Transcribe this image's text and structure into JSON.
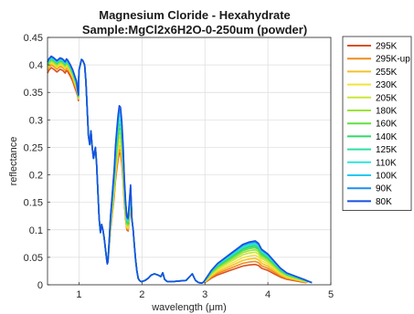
{
  "chart_data": {
    "type": "line",
    "title": "Magnesium Cloride - Hexahydrate",
    "subtitle": "Sample:MgCl2x6H2O-0-250um (powder)",
    "xlabel": "wavelength (μm)",
    "ylabel": "reflectance",
    "xlim": [
      0.5,
      5
    ],
    "ylim": [
      0,
      0.45
    ],
    "xticks": [
      "1",
      "2",
      "3",
      "4",
      "5"
    ],
    "yticks": [
      "0",
      "0.05",
      "0.1",
      "0.15",
      "0.2",
      "0.25",
      "0.3",
      "0.35",
      "0.4",
      "0.45"
    ],
    "grid": true,
    "legend_position": "outside-right",
    "base_curve": {
      "x": [
        0.5,
        0.52,
        0.56,
        0.6,
        0.65,
        0.7,
        0.74,
        0.78,
        0.8,
        0.82,
        0.86,
        0.9,
        0.93,
        0.96,
        0.98,
        0.99,
        1.0,
        1.02,
        1.04,
        1.06,
        1.09,
        1.11,
        1.13,
        1.15,
        1.17,
        1.19,
        1.21,
        1.23,
        1.26,
        1.28,
        1.3,
        1.32,
        1.34,
        1.36,
        1.38,
        1.4,
        1.42,
        1.44,
        1.45,
        1.46,
        1.48,
        1.5,
        1.52,
        1.54,
        1.56,
        1.58,
        1.6,
        1.62,
        1.64,
        1.66,
        1.68,
        1.7,
        1.72,
        1.74,
        1.76,
        1.78,
        1.8,
        1.82,
        1.84,
        1.86,
        1.88,
        1.9,
        1.92,
        1.94,
        1.96,
        1.98,
        2.0,
        2.05,
        2.1,
        2.15,
        2.2,
        2.25,
        2.3,
        2.33,
        2.36,
        2.4,
        2.5,
        2.6,
        2.7,
        2.8,
        2.85,
        2.9,
        2.95,
        2.98,
        3.0,
        3.05,
        3.1,
        3.2,
        3.3,
        3.4,
        3.5,
        3.6,
        3.7,
        3.8,
        3.85,
        3.9,
        3.95,
        4.0,
        4.1,
        4.2,
        4.3,
        4.4,
        4.5,
        4.6,
        4.65,
        4.7
      ],
      "y": [
        0.385,
        0.39,
        0.395,
        0.392,
        0.387,
        0.392,
        0.39,
        0.385,
        0.39,
        0.388,
        0.38,
        0.37,
        0.36,
        0.35,
        0.342,
        0.335,
        0.39,
        0.4,
        0.41,
        0.408,
        0.4,
        0.37,
        0.32,
        0.27,
        0.255,
        0.28,
        0.25,
        0.23,
        0.25,
        0.22,
        0.17,
        0.12,
        0.095,
        0.11,
        0.1,
        0.085,
        0.065,
        0.045,
        0.04,
        0.043,
        0.07,
        0.1,
        0.12,
        0.14,
        0.16,
        0.19,
        0.21,
        0.228,
        0.24,
        0.238,
        0.22,
        0.19,
        0.15,
        0.12,
        0.1,
        0.098,
        0.12,
        0.14,
        0.12,
        0.1,
        0.07,
        0.045,
        0.025,
        0.012,
        0.008,
        0.006,
        0.006,
        0.008,
        0.012,
        0.018,
        0.02,
        0.018,
        0.015,
        0.022,
        0.01,
        0.006,
        0.006,
        0.007,
        0.008,
        0.02,
        0.008,
        0.004,
        0.003,
        0.005,
        0.004,
        0.008,
        0.012,
        0.018,
        0.022,
        0.026,
        0.03,
        0.034,
        0.036,
        0.037,
        0.035,
        0.03,
        0.028,
        0.026,
        0.02,
        0.014,
        0.01,
        0.008,
        0.006,
        0.004,
        0.006,
        0.004
      ]
    },
    "series": [
      {
        "name": "295K",
        "color": "#d9501e",
        "band_scale": 1.0,
        "hump_scale": 1.0,
        "plateau_offset": 0.0
      },
      {
        "name": "295K-up",
        "color": "#f08c1c",
        "band_scale": 1.03,
        "hump_scale": 1.15,
        "plateau_offset": 0.005
      },
      {
        "name": "255K",
        "color": "#f5c02a",
        "band_scale": 1.07,
        "hump_scale": 1.3,
        "plateau_offset": 0.007
      },
      {
        "name": "230K",
        "color": "#f2e23a",
        "band_scale": 1.11,
        "hump_scale": 1.45,
        "plateau_offset": 0.009
      },
      {
        "name": "205K",
        "color": "#c9e63a",
        "band_scale": 1.15,
        "hump_scale": 1.6,
        "plateau_offset": 0.011
      },
      {
        "name": "180K",
        "color": "#9be23a",
        "band_scale": 1.19,
        "hump_scale": 1.72,
        "plateau_offset": 0.013
      },
      {
        "name": "160K",
        "color": "#5fe040",
        "band_scale": 1.23,
        "hump_scale": 1.82,
        "plateau_offset": 0.015
      },
      {
        "name": "140K",
        "color": "#2fd86a",
        "band_scale": 1.27,
        "hump_scale": 1.9,
        "plateau_offset": 0.016
      },
      {
        "name": "125K",
        "color": "#2ee0a8",
        "band_scale": 1.31,
        "hump_scale": 1.97,
        "plateau_offset": 0.017
      },
      {
        "name": "110K",
        "color": "#2de6d8",
        "band_scale": 1.35,
        "hump_scale": 2.03,
        "plateau_offset": 0.018
      },
      {
        "name": "100K",
        "color": "#28c8f0",
        "band_scale": 1.38,
        "hump_scale": 2.08,
        "plateau_offset": 0.019
      },
      {
        "name": "90K",
        "color": "#1f8ef0",
        "band_scale": 1.41,
        "hump_scale": 2.12,
        "plateau_offset": 0.02
      },
      {
        "name": "80K",
        "color": "#1a4fe0",
        "band_scale": 1.44,
        "hump_scale": 2.16,
        "plateau_offset": 0.021
      }
    ]
  }
}
